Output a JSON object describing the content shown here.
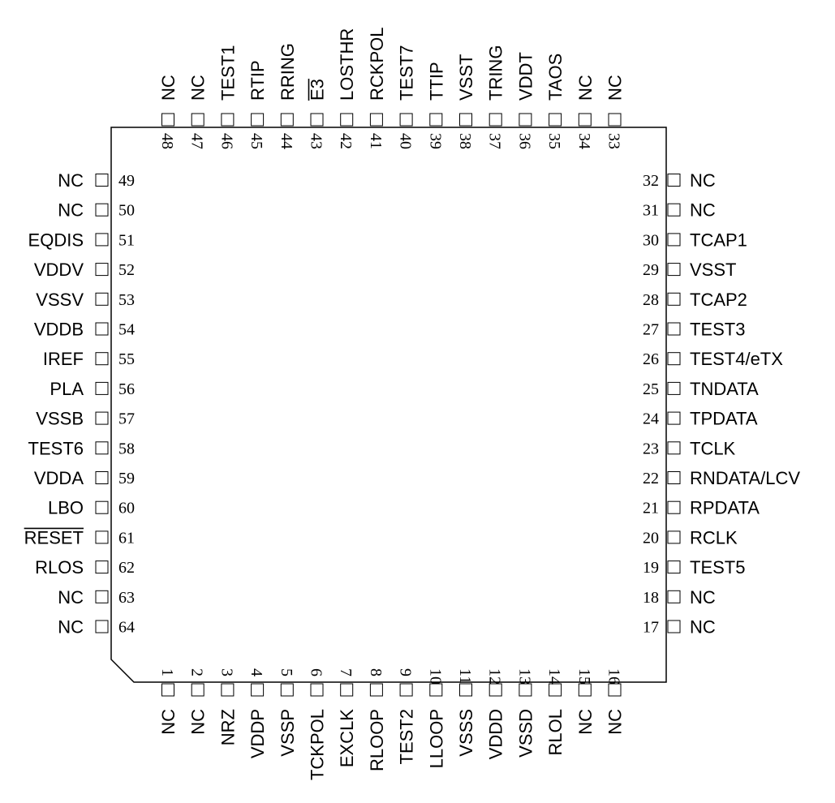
{
  "package": {
    "pins_left": [
      {
        "num": "49",
        "name": "NC"
      },
      {
        "num": "50",
        "name": "NC"
      },
      {
        "num": "51",
        "name": "EQDIS"
      },
      {
        "num": "52",
        "name": "VDDV"
      },
      {
        "num": "53",
        "name": "VSSV"
      },
      {
        "num": "54",
        "name": "VDDB"
      },
      {
        "num": "55",
        "name": "IREF"
      },
      {
        "num": "56",
        "name": "PLA"
      },
      {
        "num": "57",
        "name": "VSSB"
      },
      {
        "num": "58",
        "name": "TEST6"
      },
      {
        "num": "59",
        "name": "VDDA"
      },
      {
        "num": "60",
        "name": "LBO"
      },
      {
        "num": "61",
        "name": "RESET",
        "overbar": true
      },
      {
        "num": "62",
        "name": "RLOS"
      },
      {
        "num": "63",
        "name": "NC"
      },
      {
        "num": "64",
        "name": "NC"
      }
    ],
    "pins_right": [
      {
        "num": "32",
        "name": "NC"
      },
      {
        "num": "31",
        "name": "NC"
      },
      {
        "num": "30",
        "name": "TCAP1"
      },
      {
        "num": "29",
        "name": "VSST"
      },
      {
        "num": "28",
        "name": "TCAP2"
      },
      {
        "num": "27",
        "name": "TEST3"
      },
      {
        "num": "26",
        "name": "TEST4/eTX"
      },
      {
        "num": "25",
        "name": "TNDATA"
      },
      {
        "num": "24",
        "name": "TPDATA"
      },
      {
        "num": "23",
        "name": "TCLK"
      },
      {
        "num": "22",
        "name": "RNDATA/LCV"
      },
      {
        "num": "21",
        "name": "RPDATA"
      },
      {
        "num": "20",
        "name": "RCLK"
      },
      {
        "num": "19",
        "name": "TEST5"
      },
      {
        "num": "18",
        "name": "NC"
      },
      {
        "num": "17",
        "name": "NC"
      }
    ],
    "pins_top": [
      {
        "num": "48",
        "name": "NC"
      },
      {
        "num": "47",
        "name": "NC"
      },
      {
        "num": "46",
        "name": "TEST1"
      },
      {
        "num": "45",
        "name": "RTIP"
      },
      {
        "num": "44",
        "name": "RRING"
      },
      {
        "num": "43",
        "name": "E3",
        "overbar": true
      },
      {
        "num": "42",
        "name": "LOSTHR"
      },
      {
        "num": "41",
        "name": "RCKPOL"
      },
      {
        "num": "40",
        "name": "TEST7"
      },
      {
        "num": "39",
        "name": "TTIP"
      },
      {
        "num": "38",
        "name": "VSST"
      },
      {
        "num": "37",
        "name": "TRING"
      },
      {
        "num": "36",
        "name": "VDDT"
      },
      {
        "num": "35",
        "name": "TAOS"
      },
      {
        "num": "34",
        "name": "NC"
      },
      {
        "num": "33",
        "name": "NC"
      }
    ],
    "pins_bottom": [
      {
        "num": "1",
        "name": "NC"
      },
      {
        "num": "2",
        "name": "NC"
      },
      {
        "num": "3",
        "name": "NRZ"
      },
      {
        "num": "4",
        "name": "VDDP"
      },
      {
        "num": "5",
        "name": "VSSP"
      },
      {
        "num": "6",
        "name": "TCKPOL"
      },
      {
        "num": "7",
        "name": "EXCLK"
      },
      {
        "num": "8",
        "name": "RLOOP"
      },
      {
        "num": "9",
        "name": "TEST2"
      },
      {
        "num": "10",
        "name": "LLOOP"
      },
      {
        "num": "11",
        "name": "VSSS"
      },
      {
        "num": "12",
        "name": "VDDD"
      },
      {
        "num": "13",
        "name": "VSSD"
      },
      {
        "num": "14",
        "name": "RLOL"
      },
      {
        "num": "15",
        "name": "NC"
      },
      {
        "num": "16",
        "name": "NC"
      }
    ]
  }
}
